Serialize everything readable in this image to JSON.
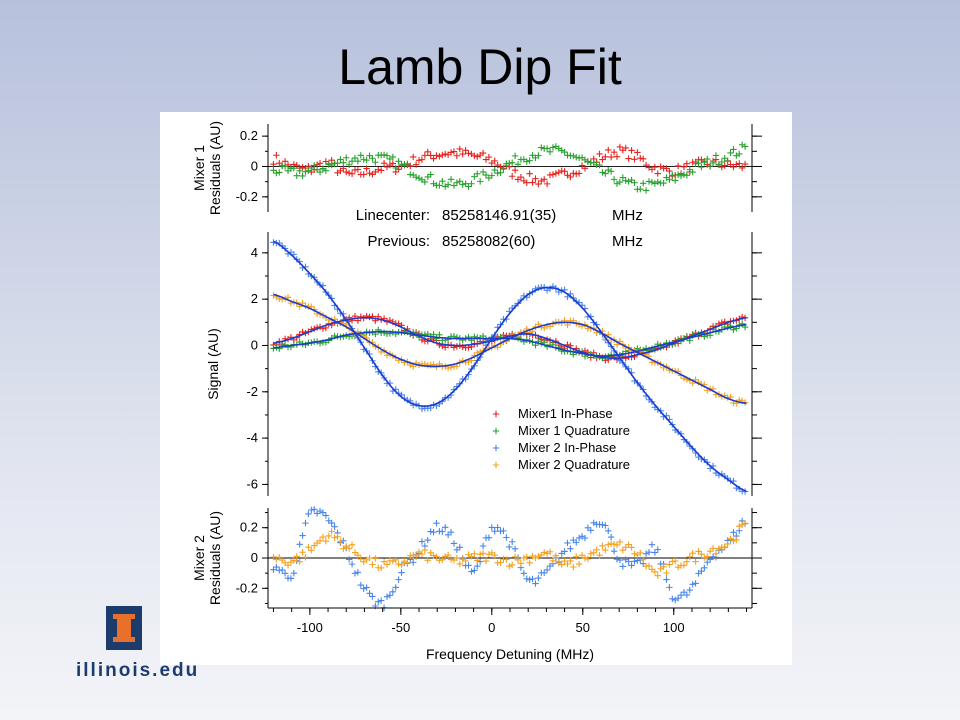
{
  "slide": {
    "title": "Lamb Dip Fit",
    "logo_text": "illinois.edu",
    "logo_icon": "illinois-block-i-icon"
  },
  "info": {
    "linecenter_label": "Linecenter:",
    "linecenter_value": "85258146.91(35)",
    "linecenter_unit": "MHz",
    "previous_label": "Previous:",
    "previous_value": "85258082(60)",
    "previous_unit": "MHz"
  },
  "chart_data": {
    "type": "scatter",
    "xlabel": "Frequency Detuning (MHz)",
    "xlim": [
      -123,
      143
    ],
    "xticks": [
      -100,
      -50,
      0,
      50,
      100
    ],
    "grid": false,
    "legend_placement": "lower-right",
    "colors": {
      "mixer1_in_phase": "#e8231f",
      "mixer1_quadrature": "#27a22c",
      "mixer2_in_phase": "#4a86e8",
      "mixer2_quadrature": "#f4a11e",
      "fit": "#1d3ccf"
    },
    "panels": [
      {
        "id": "mixer1_residuals",
        "ylabel": [
          "Mixer 1",
          "Residuals (AU)"
        ],
        "ylim": [
          -0.3,
          0.28
        ],
        "yticks": [
          "0.2",
          "0",
          "-0.2"
        ],
        "series": [
          {
            "key": "mixer1_in_phase",
            "x": [
              -120,
              -110,
              -100,
              -90,
              -80,
              -70,
              -60,
              -50,
              -40,
              -30,
              -20,
              -10,
              0,
              10,
              20,
              30,
              40,
              50,
              60,
              70,
              80,
              90,
              100,
              110,
              120,
              130,
              140
            ],
            "y": [
              0.05,
              0.0,
              -0.02,
              0.02,
              -0.05,
              -0.04,
              -0.01,
              0.0,
              0.05,
              0.08,
              0.09,
              0.07,
              0.04,
              -0.03,
              -0.08,
              -0.09,
              -0.05,
              0.0,
              0.06,
              0.1,
              0.06,
              -0.01,
              -0.03,
              0.0,
              0.02,
              0.01,
              0.0
            ]
          },
          {
            "key": "mixer1_quadrature",
            "x": [
              -120,
              -110,
              -100,
              -90,
              -80,
              -70,
              -60,
              -50,
              -40,
              -30,
              -20,
              -10,
              0,
              10,
              20,
              30,
              40,
              50,
              60,
              70,
              80,
              90,
              100,
              110,
              120,
              130,
              140
            ],
            "y": [
              -0.02,
              -0.04,
              -0.03,
              0.0,
              0.04,
              0.06,
              0.05,
              0.01,
              -0.05,
              -0.1,
              -0.12,
              -0.09,
              -0.04,
              0.02,
              0.07,
              0.1,
              0.09,
              0.04,
              -0.03,
              -0.09,
              -0.13,
              -0.12,
              -0.08,
              -0.02,
              0.03,
              0.07,
              0.12
            ]
          }
        ]
      },
      {
        "id": "signal",
        "ylabel": [
          "Signal (AU)"
        ],
        "ylim": [
          -6.5,
          4.9
        ],
        "yticks": [
          "4",
          "2",
          "0",
          "-2",
          "-4",
          "-6"
        ],
        "series": [
          {
            "key": "mixer1_in_phase",
            "x": [
              -120,
              -110,
              -100,
              -90,
              -80,
              -70,
              -60,
              -50,
              -40,
              -30,
              -20,
              -10,
              0,
              10,
              20,
              30,
              40,
              50,
              60,
              70,
              80,
              90,
              100,
              110,
              120,
              130,
              140
            ],
            "y": [
              0.1,
              0.3,
              0.6,
              0.9,
              1.1,
              1.2,
              1.1,
              0.8,
              0.4,
              0.1,
              0.0,
              0.05,
              0.2,
              0.4,
              0.5,
              0.3,
              0.0,
              -0.3,
              -0.5,
              -0.55,
              -0.4,
              -0.2,
              0.1,
              0.4,
              0.7,
              1.0,
              1.2
            ]
          },
          {
            "key": "mixer1_quadrature",
            "x": [
              -120,
              -110,
              -100,
              -90,
              -80,
              -70,
              -60,
              -50,
              -40,
              -30,
              -20,
              -10,
              0,
              10,
              20,
              30,
              40,
              50,
              60,
              70,
              80,
              90,
              100,
              110,
              120,
              130,
              140
            ],
            "y": [
              -0.1,
              0.0,
              0.1,
              0.25,
              0.45,
              0.55,
              0.6,
              0.55,
              0.45,
              0.35,
              0.3,
              0.3,
              0.3,
              0.3,
              0.2,
              0.0,
              -0.2,
              -0.35,
              -0.45,
              -0.4,
              -0.25,
              -0.05,
              0.15,
              0.35,
              0.55,
              0.75,
              0.9
            ]
          },
          {
            "key": "mixer2_in_phase",
            "x": [
              -120,
              -110,
              -100,
              -90,
              -80,
              -70,
              -60,
              -50,
              -40,
              -30,
              -20,
              -10,
              0,
              10,
              20,
              30,
              40,
              50,
              60,
              70,
              80,
              90,
              100,
              110,
              120,
              130,
              140
            ],
            "y": [
              4.5,
              3.9,
              3.1,
              2.2,
              1.1,
              -0.1,
              -1.3,
              -2.2,
              -2.6,
              -2.5,
              -1.9,
              -0.9,
              0.3,
              1.4,
              2.2,
              2.5,
              2.3,
              1.6,
              0.6,
              -0.5,
              -1.6,
              -2.6,
              -3.5,
              -4.4,
              -5.2,
              -5.8,
              -6.3
            ]
          },
          {
            "key": "mixer2_quadrature",
            "x": [
              -120,
              -110,
              -100,
              -90,
              -80,
              -70,
              -60,
              -50,
              -40,
              -30,
              -20,
              -10,
              0,
              10,
              20,
              30,
              40,
              50,
              60,
              70,
              80,
              90,
              100,
              110,
              120,
              130,
              140
            ],
            "y": [
              2.2,
              1.9,
              1.6,
              1.2,
              0.8,
              0.3,
              -0.2,
              -0.6,
              -0.85,
              -0.9,
              -0.8,
              -0.5,
              -0.1,
              0.3,
              0.65,
              0.9,
              1.0,
              0.9,
              0.55,
              0.1,
              -0.3,
              -0.7,
              -1.1,
              -1.5,
              -1.9,
              -2.3,
              -2.5
            ]
          }
        ],
        "fit_series": [
          "mixer1_in_phase",
          "mixer1_quadrature",
          "mixer2_in_phase",
          "mixer2_quadrature"
        ],
        "legend": [
          {
            "key": "mixer1_in_phase",
            "label": "Mixer1 In-Phase"
          },
          {
            "key": "mixer1_quadrature",
            "label": "Mixer 1 Quadrature"
          },
          {
            "key": "mixer2_in_phase",
            "label": "Mixer 2 In-Phase"
          },
          {
            "key": "mixer2_quadrature",
            "label": "Mixer 2 Quadrature"
          }
        ]
      },
      {
        "id": "mixer2_residuals",
        "ylabel": [
          "Mixer 2",
          "Residuals (AU)"
        ],
        "ylim": [
          -0.33,
          0.33
        ],
        "yticks": [
          "0.2",
          "0",
          "-0.2"
        ],
        "series": [
          {
            "key": "mixer2_in_phase",
            "x": [
              -120,
              -110,
              -100,
              -90,
              -80,
              -70,
              -60,
              -50,
              -40,
              -30,
              -20,
              -10,
              0,
              10,
              20,
              30,
              40,
              50,
              60,
              70,
              80,
              90,
              100,
              110,
              120,
              130,
              140
            ],
            "y": [
              -0.05,
              -0.1,
              0.28,
              0.25,
              0.05,
              -0.2,
              -0.3,
              -0.1,
              0.05,
              0.2,
              0.1,
              -0.1,
              0.2,
              0.1,
              -0.15,
              -0.1,
              0.05,
              0.15,
              0.25,
              0.0,
              -0.05,
              0.05,
              -0.25,
              -0.2,
              0.0,
              0.1,
              0.25
            ]
          },
          {
            "key": "mixer2_quadrature",
            "x": [
              -120,
              -110,
              -100,
              -90,
              -80,
              -70,
              -60,
              -50,
              -40,
              -30,
              -20,
              -10,
              0,
              10,
              20,
              30,
              40,
              50,
              60,
              70,
              80,
              90,
              100,
              110,
              120,
              130,
              140
            ],
            "y": [
              0.0,
              -0.02,
              0.05,
              0.15,
              0.08,
              0.0,
              -0.05,
              -0.03,
              0.02,
              0.0,
              -0.02,
              0.0,
              0.01,
              -0.02,
              0.0,
              0.03,
              -0.05,
              0.0,
              0.05,
              0.08,
              0.03,
              -0.1,
              -0.05,
              0.0,
              0.05,
              0.1,
              0.22
            ]
          }
        ]
      }
    ]
  }
}
